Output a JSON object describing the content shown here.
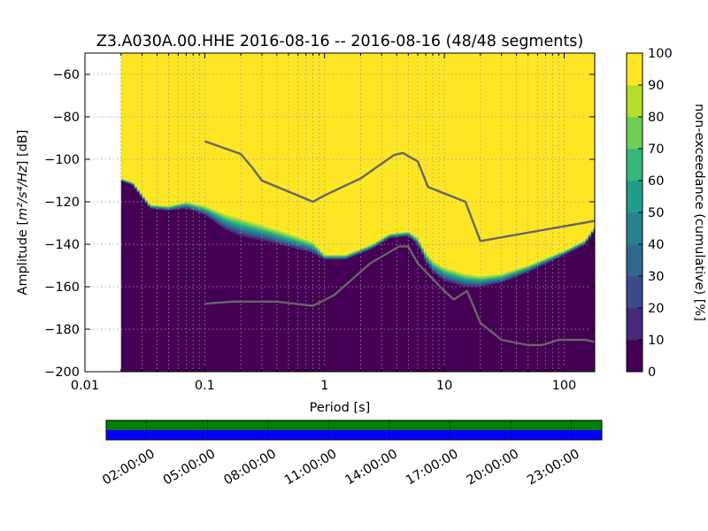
{
  "chart_data": {
    "type": "heatmap",
    "title": "Z3.A030A.00.HHE   2016-08-16 -- 2016-08-16  (48/48 segments)",
    "xlabel": "Period [s]",
    "ylabel_prefix": "Amplitude [",
    "ylabel_math": "m²/s⁴/Hz",
    "ylabel_suffix": "] [dB]",
    "x_scale": "log",
    "xlim": [
      0.01,
      180
    ],
    "ylim": [
      -200,
      -50
    ],
    "x_ticks": [
      {
        "value": 0.01,
        "label": "0.01"
      },
      {
        "value": 0.1,
        "label": "0.1"
      },
      {
        "value": 1,
        "label": "1"
      },
      {
        "value": 10,
        "label": "10"
      },
      {
        "value": 100,
        "label": "100"
      }
    ],
    "y_ticks": [
      {
        "value": -60,
        "label": "−60"
      },
      {
        "value": -80,
        "label": "−80"
      },
      {
        "value": -100,
        "label": "−100"
      },
      {
        "value": -120,
        "label": "−120"
      },
      {
        "value": -140,
        "label": "−140"
      },
      {
        "value": -160,
        "label": "−160"
      },
      {
        "value": -180,
        "label": "−180"
      },
      {
        "value": -200,
        "label": "−200"
      }
    ],
    "grid": true,
    "colormap": [
      "#440154",
      "#482878",
      "#3e4a89",
      "#31688e",
      "#26828e",
      "#1f9e89",
      "#35b779",
      "#6ece58",
      "#b5de2b",
      "#fde725"
    ],
    "colorbar": {
      "label": "non-exceedance (cumulative) [%]",
      "range": [
        0,
        100
      ],
      "ticks": [
        {
          "value": 0,
          "label": "0"
        },
        {
          "value": 10,
          "label": "10"
        },
        {
          "value": 20,
          "label": "20"
        },
        {
          "value": 30,
          "label": "30"
        },
        {
          "value": 40,
          "label": "40"
        },
        {
          "value": 50,
          "label": "50"
        },
        {
          "value": 60,
          "label": "60"
        },
        {
          "value": 70,
          "label": "70"
        },
        {
          "value": 80,
          "label": "80"
        },
        {
          "value": 90,
          "label": "90"
        },
        {
          "value": 100,
          "label": "100"
        }
      ]
    },
    "data_min_period": 0.02,
    "psd_floor": {
      "x": [
        0.02,
        0.025,
        0.03,
        0.035,
        0.05,
        0.07,
        0.1,
        0.15,
        0.2,
        0.3,
        0.5,
        0.8,
        1,
        1.5,
        2.5,
        3.5,
        5,
        6,
        7,
        8,
        10,
        15,
        20,
        30,
        50,
        100,
        150,
        180
      ],
      "y": [
        -110,
        -112,
        -118,
        -123,
        -124,
        -123,
        -126,
        -133,
        -136,
        -138,
        -141,
        -144,
        -147,
        -147,
        -142,
        -137,
        -136,
        -140,
        -148,
        -153,
        -157,
        -160,
        -160,
        -158,
        -153,
        -145,
        -140,
        -133
      ]
    },
    "transition": {
      "x": [
        0.02,
        0.05,
        0.1,
        0.15,
        0.2,
        0.3,
        0.5,
        0.8,
        1,
        1.5,
        2.5,
        3.5,
        5,
        6,
        7,
        8,
        10,
        15,
        20,
        30,
        50,
        100,
        150,
        180
      ],
      "width_db": [
        1,
        2,
        4,
        7,
        8,
        7,
        6,
        5,
        2,
        2,
        2,
        2,
        2,
        3,
        4,
        5,
        6,
        6,
        5,
        4,
        3,
        2,
        2,
        1
      ]
    },
    "series": [
      {
        "x": [
          0.1,
          0.2,
          0.25,
          0.3,
          0.8,
          1.0,
          2.0,
          3.8,
          4.5,
          6.0,
          7.3,
          15,
          20,
          180
        ],
        "y": [
          -91.5,
          -97.5,
          -104,
          -110,
          -120,
          -117,
          -109,
          -98,
          -97,
          -101,
          -113,
          -120,
          -138.5,
          -129
        ]
      },
      {
        "x": [
          0.1,
          0.17,
          0.4,
          0.8,
          1.2,
          2.4,
          4.2,
          5.0,
          6.0,
          10,
          12,
          15.5,
          20,
          30,
          50,
          65,
          90,
          150,
          180
        ],
        "y": [
          -168,
          -167,
          -167,
          -169,
          -164,
          -149,
          -141,
          -141,
          -149,
          -162,
          -166,
          -162,
          -177,
          -185,
          -187.5,
          -187.5,
          -185,
          -185,
          -186
        ]
      }
    ],
    "series_color": "#666666",
    "timeline": {
      "tick_labels": [
        "02:00:00",
        "05:00:00",
        "08:00:00",
        "11:00:00",
        "14:00:00",
        "17:00:00",
        "20:00:00",
        "23:00:00"
      ],
      "tick_hours": [
        2,
        5,
        8,
        11,
        14,
        17,
        20,
        23
      ],
      "range_hours": [
        0,
        24.5
      ],
      "coverage_color": "#008000",
      "psd_color": "#0000ff"
    }
  }
}
